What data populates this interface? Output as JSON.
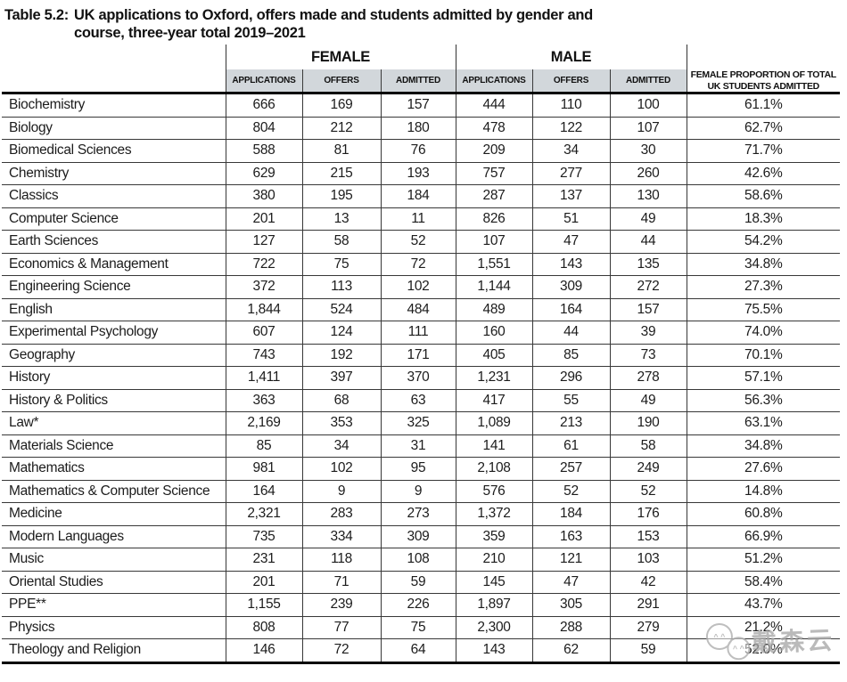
{
  "title": {
    "label": "Table 5.2:",
    "line1": "UK applications to Oxford, offers made and students admitted by gender and",
    "line2": "course, three-year total 2019–2021"
  },
  "table": {
    "groups": {
      "female": "FEMALE",
      "male": "MALE"
    },
    "sub_headers": [
      "APPLICATIONS",
      "OFFERS",
      "ADMITTED"
    ],
    "proportion_header_line1": "FEMALE PROPORTION OF TOTAL",
    "proportion_header_line2": "UK STUDENTS ADMITTED",
    "header_bg_color": "#d2d7db",
    "rows": [
      {
        "course": "Biochemistry",
        "female": {
          "applications": "666",
          "offers": "169",
          "admitted": "157"
        },
        "male": {
          "applications": "444",
          "offers": "110",
          "admitted": "100"
        },
        "female_proportion": "61.1%"
      },
      {
        "course": "Biology",
        "female": {
          "applications": "804",
          "offers": "212",
          "admitted": "180"
        },
        "male": {
          "applications": "478",
          "offers": "122",
          "admitted": "107"
        },
        "female_proportion": "62.7%"
      },
      {
        "course": "Biomedical Sciences",
        "female": {
          "applications": "588",
          "offers": "81",
          "admitted": "76"
        },
        "male": {
          "applications": "209",
          "offers": "34",
          "admitted": "30"
        },
        "female_proportion": "71.7%"
      },
      {
        "course": "Chemistry",
        "female": {
          "applications": "629",
          "offers": "215",
          "admitted": "193"
        },
        "male": {
          "applications": "757",
          "offers": "277",
          "admitted": "260"
        },
        "female_proportion": "42.6%"
      },
      {
        "course": "Classics",
        "female": {
          "applications": "380",
          "offers": "195",
          "admitted": "184"
        },
        "male": {
          "applications": "287",
          "offers": "137",
          "admitted": "130"
        },
        "female_proportion": "58.6%"
      },
      {
        "course": "Computer Science",
        "female": {
          "applications": "201",
          "offers": "13",
          "admitted": "11"
        },
        "male": {
          "applications": "826",
          "offers": "51",
          "admitted": "49"
        },
        "female_proportion": "18.3%"
      },
      {
        "course": "Earth Sciences",
        "female": {
          "applications": "127",
          "offers": "58",
          "admitted": "52"
        },
        "male": {
          "applications": "107",
          "offers": "47",
          "admitted": "44"
        },
        "female_proportion": "54.2%"
      },
      {
        "course": "Economics & Management",
        "female": {
          "applications": "722",
          "offers": "75",
          "admitted": "72"
        },
        "male": {
          "applications": "1,551",
          "offers": "143",
          "admitted": "135"
        },
        "female_proportion": "34.8%"
      },
      {
        "course": "Engineering Science",
        "female": {
          "applications": "372",
          "offers": "113",
          "admitted": "102"
        },
        "male": {
          "applications": "1,144",
          "offers": "309",
          "admitted": "272"
        },
        "female_proportion": "27.3%"
      },
      {
        "course": "English",
        "female": {
          "applications": "1,844",
          "offers": "524",
          "admitted": "484"
        },
        "male": {
          "applications": "489",
          "offers": "164",
          "admitted": "157"
        },
        "female_proportion": "75.5%"
      },
      {
        "course": "Experimental Psychology",
        "female": {
          "applications": "607",
          "offers": "124",
          "admitted": "111"
        },
        "male": {
          "applications": "160",
          "offers": "44",
          "admitted": "39"
        },
        "female_proportion": "74.0%"
      },
      {
        "course": "Geography",
        "female": {
          "applications": "743",
          "offers": "192",
          "admitted": "171"
        },
        "male": {
          "applications": "405",
          "offers": "85",
          "admitted": "73"
        },
        "female_proportion": "70.1%"
      },
      {
        "course": "History",
        "female": {
          "applications": "1,411",
          "offers": "397",
          "admitted": "370"
        },
        "male": {
          "applications": "1,231",
          "offers": "296",
          "admitted": "278"
        },
        "female_proportion": "57.1%"
      },
      {
        "course": "History & Politics",
        "female": {
          "applications": "363",
          "offers": "68",
          "admitted": "63"
        },
        "male": {
          "applications": "417",
          "offers": "55",
          "admitted": "49"
        },
        "female_proportion": "56.3%"
      },
      {
        "course": "Law*",
        "female": {
          "applications": "2,169",
          "offers": "353",
          "admitted": "325"
        },
        "male": {
          "applications": "1,089",
          "offers": "213",
          "admitted": "190"
        },
        "female_proportion": "63.1%"
      },
      {
        "course": "Materials Science",
        "female": {
          "applications": "85",
          "offers": "34",
          "admitted": "31"
        },
        "male": {
          "applications": "141",
          "offers": "61",
          "admitted": "58"
        },
        "female_proportion": "34.8%"
      },
      {
        "course": "Mathematics",
        "female": {
          "applications": "981",
          "offers": "102",
          "admitted": "95"
        },
        "male": {
          "applications": "2,108",
          "offers": "257",
          "admitted": "249"
        },
        "female_proportion": "27.6%"
      },
      {
        "course": "Mathematics & Computer Science",
        "female": {
          "applications": "164",
          "offers": "9",
          "admitted": "9"
        },
        "male": {
          "applications": "576",
          "offers": "52",
          "admitted": "52"
        },
        "female_proportion": "14.8%"
      },
      {
        "course": "Medicine",
        "female": {
          "applications": "2,321",
          "offers": "283",
          "admitted": "273"
        },
        "male": {
          "applications": "1,372",
          "offers": "184",
          "admitted": "176"
        },
        "female_proportion": "60.8%"
      },
      {
        "course": "Modern Languages",
        "female": {
          "applications": "735",
          "offers": "334",
          "admitted": "309"
        },
        "male": {
          "applications": "359",
          "offers": "163",
          "admitted": "153"
        },
        "female_proportion": "66.9%"
      },
      {
        "course": "Music",
        "female": {
          "applications": "231",
          "offers": "118",
          "admitted": "108"
        },
        "male": {
          "applications": "210",
          "offers": "121",
          "admitted": "103"
        },
        "female_proportion": "51.2%"
      },
      {
        "course": "Oriental Studies",
        "female": {
          "applications": "201",
          "offers": "71",
          "admitted": "59"
        },
        "male": {
          "applications": "145",
          "offers": "47",
          "admitted": "42"
        },
        "female_proportion": "58.4%"
      },
      {
        "course": "PPE**",
        "female": {
          "applications": "1,155",
          "offers": "239",
          "admitted": "226"
        },
        "male": {
          "applications": "1,897",
          "offers": "305",
          "admitted": "291"
        },
        "female_proportion": "43.7%"
      },
      {
        "course": "Physics",
        "female": {
          "applications": "808",
          "offers": "77",
          "admitted": "75"
        },
        "male": {
          "applications": "2,300",
          "offers": "288",
          "admitted": "279"
        },
        "female_proportion": "21.2%"
      },
      {
        "course": "Theology and Religion",
        "female": {
          "applications": "146",
          "offers": "72",
          "admitted": "64"
        },
        "male": {
          "applications": "143",
          "offers": "62",
          "admitted": "59"
        },
        "female_proportion": "52.0%"
      }
    ]
  },
  "watermark": {
    "text": "戴森云",
    "icon": "wechat-smiley-faces",
    "color": "#b3b3b3"
  }
}
